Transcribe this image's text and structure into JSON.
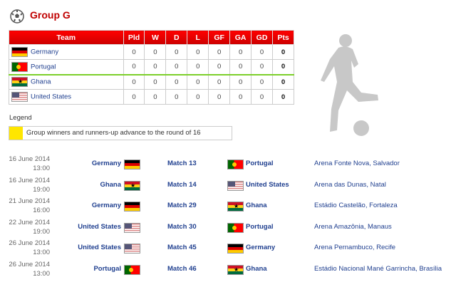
{
  "header": {
    "title": "Group G",
    "icon": "soccer-ball-icon"
  },
  "table": {
    "columns": [
      "Team",
      "Pld",
      "W",
      "D",
      "L",
      "GF",
      "GA",
      "GD",
      "Pts"
    ],
    "rows": [
      {
        "team": "Germany",
        "flag": "de",
        "stats": [
          "0",
          "0",
          "0",
          "0",
          "0",
          "0",
          "0",
          "0"
        ]
      },
      {
        "team": "Portugal",
        "flag": "pt",
        "stats": [
          "0",
          "0",
          "0",
          "0",
          "0",
          "0",
          "0",
          "0"
        ]
      },
      {
        "team": "Ghana",
        "flag": "gh",
        "stats": [
          "0",
          "0",
          "0",
          "0",
          "0",
          "0",
          "0",
          "0"
        ]
      },
      {
        "team": "United States",
        "flag": "us",
        "stats": [
          "0",
          "0",
          "0",
          "0",
          "0",
          "0",
          "0",
          "0"
        ]
      }
    ]
  },
  "legend": {
    "label": "Legend",
    "text": "Group winners and runners-up advance to the round of 16",
    "color": "#ffe600"
  },
  "matches": [
    {
      "date": "16 June 2014",
      "time": "13:00",
      "home": "Germany",
      "hflag": "de",
      "match": "Match 13",
      "away": "Portugal",
      "aflag": "pt",
      "venue": "Arena Fonte Nova, Salvador"
    },
    {
      "date": "16 June 2014",
      "time": "19:00",
      "home": "Ghana",
      "hflag": "gh",
      "match": "Match 14",
      "away": "United States",
      "aflag": "us",
      "venue": "Arena das Dunas, Natal"
    },
    {
      "date": "21 June 2014",
      "time": "16:00",
      "home": "Germany",
      "hflag": "de",
      "match": "Match 29",
      "away": "Ghana",
      "aflag": "gh",
      "venue": "Estádio Castelão, Fortaleza"
    },
    {
      "date": "22 June 2014",
      "time": "19:00",
      "home": "United States",
      "hflag": "us",
      "match": "Match 30",
      "away": "Portugal",
      "aflag": "pt",
      "venue": "Arena Amazônia, Manaus"
    },
    {
      "date": "26 June 2014",
      "time": "13:00",
      "home": "United States",
      "hflag": "us",
      "match": "Match 45",
      "away": "Germany",
      "aflag": "de",
      "venue": "Arena Pernambuco, Recife"
    },
    {
      "date": "26 June 2014",
      "time": "13:00",
      "home": "Portugal",
      "hflag": "pt",
      "match": "Match 46",
      "away": "Ghana",
      "aflag": "gh",
      "venue": "Estádio Nacional Mané Garrincha, Brasília"
    }
  ]
}
